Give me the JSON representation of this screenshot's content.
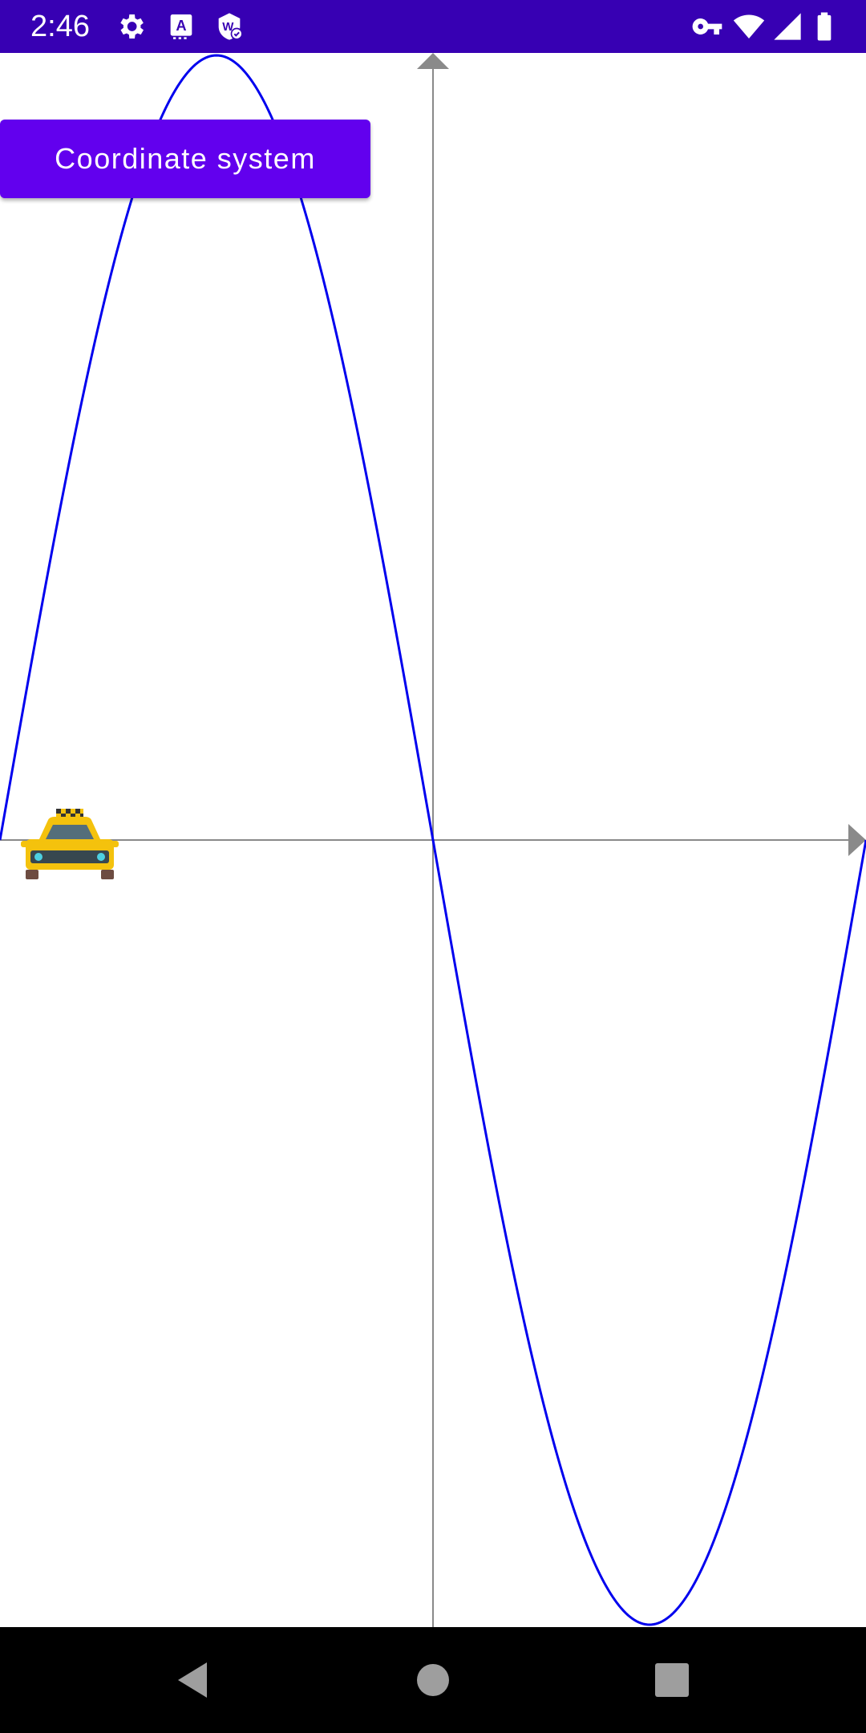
{
  "status_bar": {
    "time": "2:46",
    "background_color": "#3700b3",
    "left_icons": [
      "settings-gear-icon",
      "a-app-icon",
      "w-shield-icon"
    ],
    "right_icons": [
      "vpn-key-icon",
      "wifi-icon",
      "cellular-signal-icon",
      "battery-icon"
    ]
  },
  "app": {
    "button_label": "Coordinate system",
    "button_color": "#6200ee",
    "sprite": "taxi-icon"
  },
  "chart_data": {
    "type": "line",
    "title": "",
    "xlabel": "",
    "ylabel": "",
    "function": "y = -sin(x)",
    "xlim": [
      -3.1416,
      3.1416
    ],
    "ylim": [
      -1,
      1
    ],
    "grid": false,
    "axes_color": "#8a8a8a",
    "series": [
      {
        "color": "#0000ee",
        "x": [
          -3.1416,
          -2.3562,
          -1.5708,
          -0.7854,
          0,
          0.7854,
          1.5708,
          2.3562,
          3.1416
        ],
        "y": [
          0,
          0.7071,
          1,
          0.7071,
          0,
          -0.7071,
          -1,
          -0.7071,
          0
        ]
      }
    ]
  },
  "nav_bar": {
    "buttons": [
      "back-icon",
      "home-icon",
      "recents-icon"
    ]
  }
}
